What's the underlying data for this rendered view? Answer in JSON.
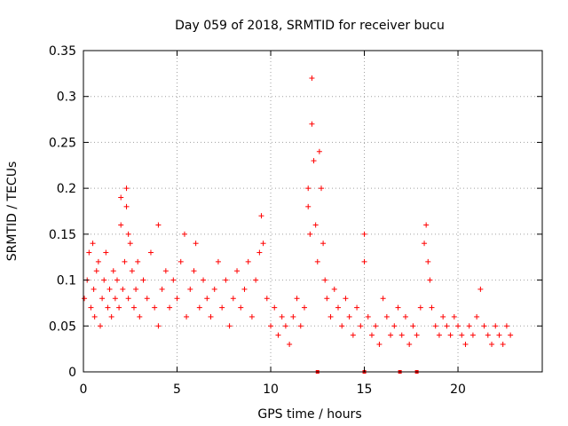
{
  "chart_data": {
    "type": "scatter",
    "title": "Day 059 of 2018, SRMTID for receiver bucu",
    "xlabel": "GPS time / hours",
    "ylabel": "SRMTID / TECUs",
    "xlim": [
      0,
      24.5
    ],
    "ylim": [
      0,
      0.35
    ],
    "x_ticks": [
      0,
      5,
      10,
      15,
      20
    ],
    "y_ticks": [
      0,
      0.05,
      0.1,
      0.15,
      0.2,
      0.25,
      0.3,
      0.35
    ],
    "x_tick_labels": [
      "0",
      "5",
      "10",
      "15",
      "20"
    ],
    "y_tick_labels": [
      "0",
      "0.05",
      "0.1",
      "0.15",
      "0.2",
      "0.25",
      "0.3",
      "0.35"
    ],
    "grid": true,
    "marker": "plus",
    "color": "#ff0000",
    "series": [
      {
        "name": "SRMTID",
        "x": [
          0.05,
          0.2,
          0.3,
          0.4,
          0.5,
          0.55,
          0.6,
          0.7,
          0.8,
          0.9,
          1.0,
          1.1,
          1.2,
          1.3,
          1.4,
          1.5,
          1.6,
          1.7,
          1.8,
          1.9,
          2.0,
          2.0,
          2.1,
          2.2,
          2.3,
          2.3,
          2.4,
          2.4,
          2.5,
          2.6,
          2.7,
          2.8,
          2.9,
          3.0,
          3.2,
          3.4,
          3.6,
          3.8,
          4.0,
          4.0,
          4.2,
          4.4,
          4.6,
          4.8,
          5.0,
          5.2,
          5.4,
          5.5,
          5.7,
          5.9,
          6.0,
          6.2,
          6.4,
          6.6,
          6.8,
          7.0,
          7.2,
          7.4,
          7.6,
          7.8,
          8.0,
          8.2,
          8.4,
          8.6,
          8.8,
          9.0,
          9.2,
          9.4,
          9.5,
          9.6,
          9.8,
          10.0,
          10.2,
          10.4,
          10.6,
          10.8,
          11.0,
          11.2,
          11.4,
          11.6,
          11.8,
          12.0,
          12.0,
          12.1,
          12.2,
          12.2,
          12.3,
          12.4,
          12.5,
          12.6,
          12.7,
          12.8,
          12.9,
          13.0,
          13.2,
          13.4,
          13.6,
          13.8,
          14.0,
          14.2,
          14.4,
          14.6,
          14.8,
          15.0,
          15.0,
          15.2,
          15.4,
          15.6,
          15.8,
          16.0,
          16.2,
          16.4,
          16.6,
          16.8,
          17.0,
          17.2,
          17.4,
          17.6,
          17.8,
          18.0,
          18.2,
          18.3,
          18.4,
          18.5,
          18.6,
          18.8,
          19.0,
          19.2,
          19.4,
          19.6,
          19.8,
          20.0,
          20.2,
          20.4,
          20.6,
          20.8,
          21.0,
          21.2,
          21.4,
          21.6,
          21.8,
          22.0,
          22.2,
          22.4,
          22.6,
          22.8,
          12.5,
          15.0,
          16.9,
          17.8
        ],
        "y": [
          0.08,
          0.1,
          0.13,
          0.07,
          0.14,
          0.09,
          0.06,
          0.11,
          0.12,
          0.05,
          0.08,
          0.1,
          0.13,
          0.07,
          0.09,
          0.06,
          0.11,
          0.08,
          0.1,
          0.07,
          0.19,
          0.16,
          0.09,
          0.12,
          0.2,
          0.18,
          0.15,
          0.08,
          0.14,
          0.11,
          0.07,
          0.09,
          0.12,
          0.06,
          0.1,
          0.08,
          0.13,
          0.07,
          0.16,
          0.05,
          0.09,
          0.11,
          0.07,
          0.1,
          0.08,
          0.12,
          0.15,
          0.06,
          0.09,
          0.11,
          0.14,
          0.07,
          0.1,
          0.08,
          0.06,
          0.09,
          0.12,
          0.07,
          0.1,
          0.05,
          0.08,
          0.11,
          0.07,
          0.09,
          0.12,
          0.06,
          0.1,
          0.13,
          0.17,
          0.14,
          0.08,
          0.05,
          0.07,
          0.04,
          0.06,
          0.05,
          0.03,
          0.06,
          0.08,
          0.05,
          0.07,
          0.2,
          0.18,
          0.15,
          0.32,
          0.27,
          0.23,
          0.16,
          0.12,
          0.24,
          0.2,
          0.14,
          0.1,
          0.08,
          0.06,
          0.09,
          0.07,
          0.05,
          0.08,
          0.06,
          0.04,
          0.07,
          0.05,
          0.15,
          0.12,
          0.06,
          0.04,
          0.05,
          0.03,
          0.08,
          0.06,
          0.04,
          0.05,
          0.07,
          0.04,
          0.06,
          0.03,
          0.05,
          0.04,
          0.07,
          0.14,
          0.16,
          0.12,
          0.1,
          0.07,
          0.05,
          0.04,
          0.06,
          0.05,
          0.04,
          0.06,
          0.05,
          0.04,
          0.03,
          0.05,
          0.04,
          0.06,
          0.09,
          0.05,
          0.04,
          0.03,
          0.05,
          0.04,
          0.03,
          0.05,
          0.04,
          0.0,
          0.0,
          0.0,
          0.0
        ]
      }
    ]
  }
}
